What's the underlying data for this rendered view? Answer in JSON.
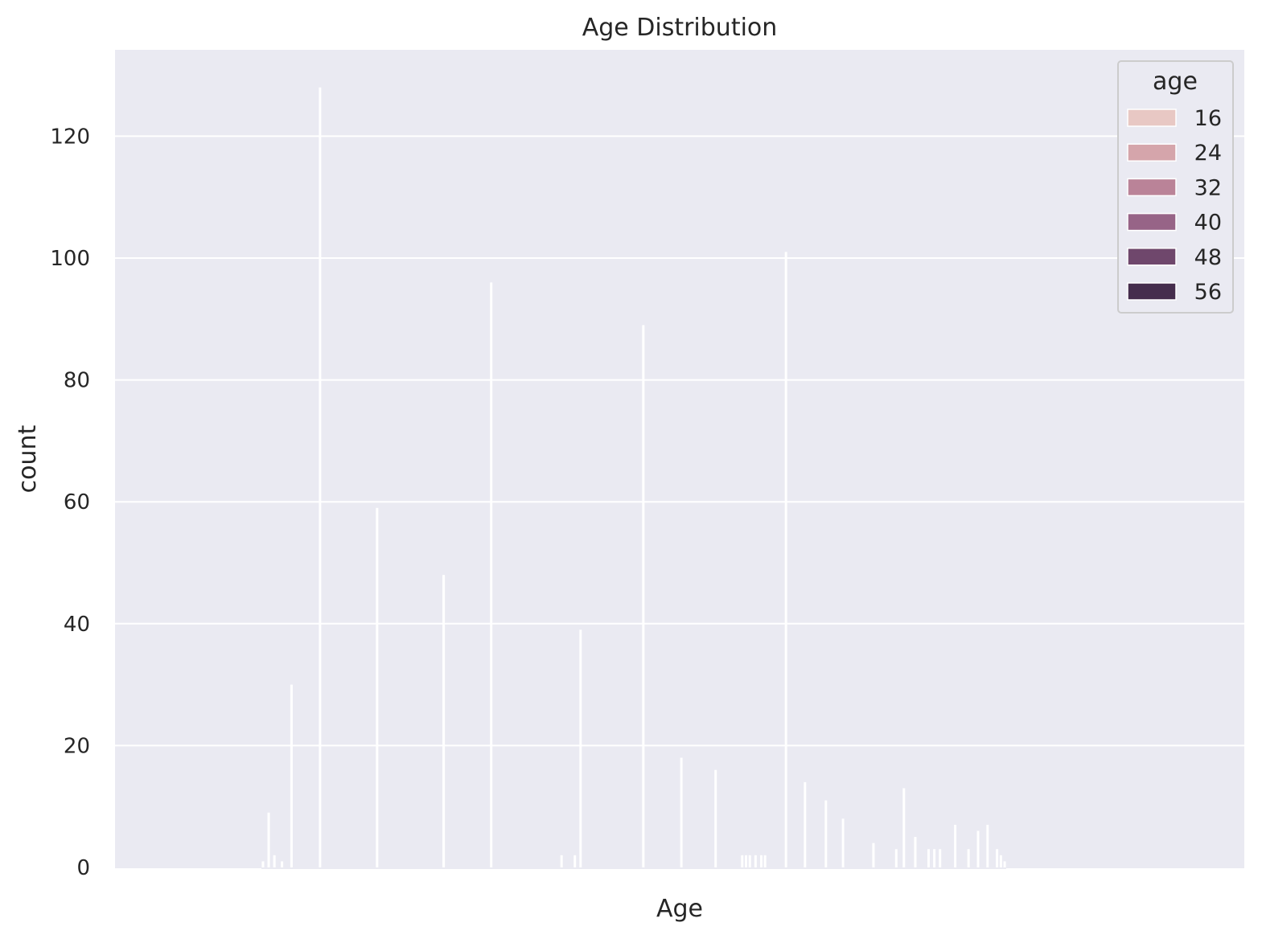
{
  "chart_data": {
    "type": "bar",
    "title": "Age Distribution",
    "xlabel": "Age",
    "ylabel": "count",
    "ylim": [
      0,
      135
    ],
    "y_ticks": [
      0,
      20,
      40,
      60,
      80,
      100,
      120
    ],
    "grid": true,
    "x_tick_labels_visible": false,
    "legend": {
      "title": "age",
      "placement": "top-right",
      "entries": [
        {
          "label": "16",
          "color": "#e8c8c4"
        },
        {
          "label": "24",
          "color": "#d5a5ab"
        },
        {
          "label": "32",
          "color": "#ba8398"
        },
        {
          "label": "40",
          "color": "#976487"
        },
        {
          "label": "48",
          "color": "#6f476c"
        },
        {
          "label": "56",
          "color": "#452d4d"
        }
      ]
    },
    "bars": [
      {
        "x": 18,
        "value": 1
      },
      {
        "x": 18.3,
        "value": 9
      },
      {
        "x": 18.6,
        "value": 2
      },
      {
        "x": 19,
        "value": 1
      },
      {
        "x": 19.5,
        "value": 30
      },
      {
        "x": 21,
        "value": 128
      },
      {
        "x": 24,
        "value": 59
      },
      {
        "x": 27.5,
        "value": 48
      },
      {
        "x": 30,
        "value": 96
      },
      {
        "x": 33.7,
        "value": 2
      },
      {
        "x": 34.4,
        "value": 2
      },
      {
        "x": 34.7,
        "value": 39
      },
      {
        "x": 38,
        "value": 89
      },
      {
        "x": 40,
        "value": 18
      },
      {
        "x": 41.8,
        "value": 16
      },
      {
        "x": 43.2,
        "value": 2
      },
      {
        "x": 43.4,
        "value": 2
      },
      {
        "x": 43.6,
        "value": 2
      },
      {
        "x": 43.9,
        "value": 2
      },
      {
        "x": 44.2,
        "value": 2
      },
      {
        "x": 44.4,
        "value": 2
      },
      {
        "x": 45.5,
        "value": 101
      },
      {
        "x": 46.5,
        "value": 14
      },
      {
        "x": 47.6,
        "value": 11
      },
      {
        "x": 48.5,
        "value": 8
      },
      {
        "x": 50.1,
        "value": 4
      },
      {
        "x": 51.3,
        "value": 3
      },
      {
        "x": 51.7,
        "value": 13
      },
      {
        "x": 52.3,
        "value": 5
      },
      {
        "x": 53,
        "value": 3
      },
      {
        "x": 53.3,
        "value": 3
      },
      {
        "x": 53.6,
        "value": 3
      },
      {
        "x": 54.4,
        "value": 7
      },
      {
        "x": 55.1,
        "value": 3
      },
      {
        "x": 55.6,
        "value": 6
      },
      {
        "x": 56.1,
        "value": 7
      },
      {
        "x": 56.6,
        "value": 3
      },
      {
        "x": 56.8,
        "value": 2
      },
      {
        "x": 57,
        "value": 1
      }
    ]
  }
}
